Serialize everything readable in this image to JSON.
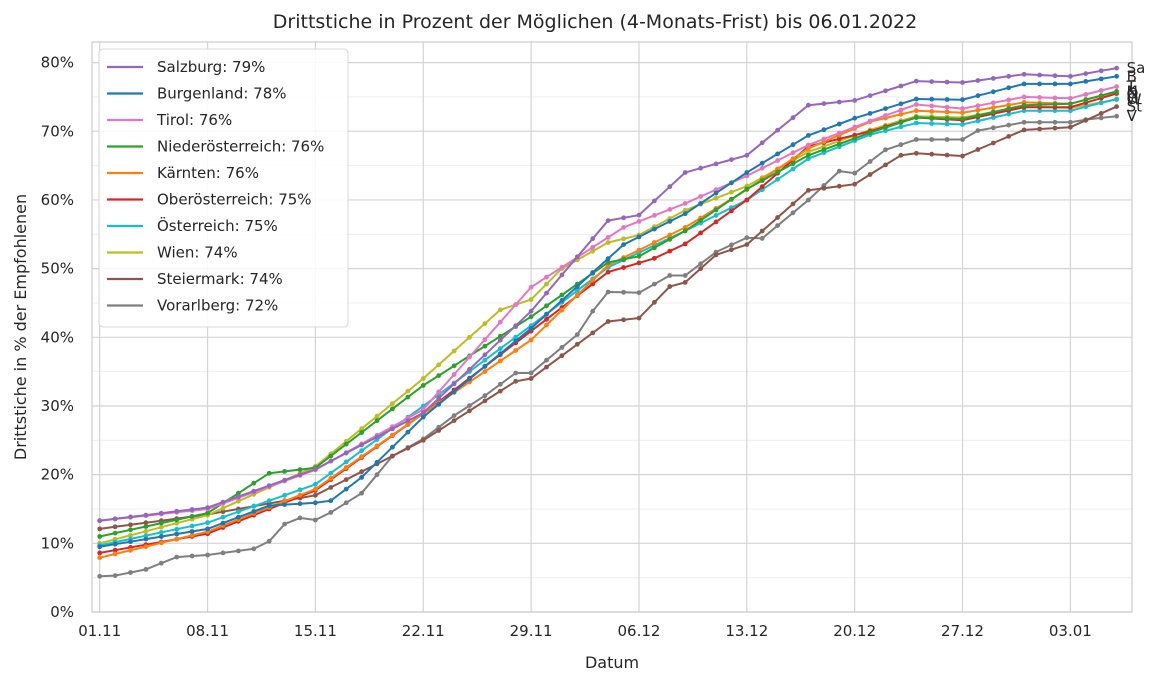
{
  "chart_data": {
    "type": "line",
    "title": "Drittstiche in Prozent der Möglichen (4-Monats-Frist) bis 06.01.2022",
    "xlabel": "Datum",
    "ylabel": "Drittstiche in % der Empfohlenen",
    "x_start": "2021-11-01",
    "x_ticks": [
      "01.11",
      "08.11",
      "15.11",
      "22.11",
      "29.11",
      "06.12",
      "13.12",
      "20.12",
      "27.12",
      "03.01"
    ],
    "y_ticks": [
      "0%",
      "10%",
      "20%",
      "30%",
      "40%",
      "50%",
      "60%",
      "70%",
      "80%"
    ],
    "ylim": [
      0,
      83
    ],
    "grid": true,
    "legend_position": "top-left",
    "series": [
      {
        "name": "Salzburg: 79%",
        "end_label": "Sa",
        "color": "#9467bd",
        "anchors": [
          [
            0,
            13.3
          ],
          [
            7,
            15.2
          ],
          [
            14,
            20.8
          ],
          [
            21,
            29.0
          ],
          [
            28,
            43.8
          ],
          [
            33,
            57.0
          ],
          [
            35,
            57.8
          ],
          [
            38,
            64.0
          ],
          [
            42,
            66.5
          ],
          [
            46,
            73.8
          ],
          [
            49,
            74.5
          ],
          [
            53,
            77.3
          ],
          [
            56,
            77.1
          ],
          [
            60,
            78.3
          ],
          [
            63,
            78.0
          ],
          [
            66,
            79.2
          ]
        ]
      },
      {
        "name": "Burgenland: 78%",
        "end_label": "B",
        "color": "#1f77b4",
        "anchors": [
          [
            0,
            9.5
          ],
          [
            7,
            12.1
          ],
          [
            11,
            15.5
          ],
          [
            14,
            15.9
          ],
          [
            15,
            16.2
          ],
          [
            17,
            19.6
          ],
          [
            21,
            28.4
          ],
          [
            28,
            41.3
          ],
          [
            34,
            53.5
          ],
          [
            38,
            58.0
          ],
          [
            42,
            64.0
          ],
          [
            46,
            69.4
          ],
          [
            49,
            71.9
          ],
          [
            53,
            74.7
          ],
          [
            56,
            74.6
          ],
          [
            60,
            76.9
          ],
          [
            63,
            76.9
          ],
          [
            66,
            78.0
          ]
        ]
      },
      {
        "name": "Tirol: 76%",
        "end_label": "T",
        "color": "#e377c2",
        "anchors": [
          [
            0,
            13.3
          ],
          [
            7,
            15.0
          ],
          [
            14,
            20.7
          ],
          [
            21,
            29.5
          ],
          [
            28,
            47.3
          ],
          [
            34,
            56.0
          ],
          [
            38,
            59.5
          ],
          [
            42,
            63.5
          ],
          [
            46,
            68.0
          ],
          [
            50,
            71.5
          ],
          [
            53,
            73.9
          ],
          [
            56,
            73.3
          ],
          [
            60,
            75.0
          ],
          [
            63,
            74.8
          ],
          [
            66,
            76.5
          ]
        ]
      },
      {
        "name": "Niederösterreich: 76%",
        "end_label": "N",
        "color": "#2ca02c",
        "anchors": [
          [
            0,
            11.0
          ],
          [
            7,
            14.4
          ],
          [
            11,
            20.2
          ],
          [
            14,
            21.0
          ],
          [
            21,
            33.0
          ],
          [
            28,
            43.0
          ],
          [
            33,
            50.9
          ],
          [
            35,
            51.8
          ],
          [
            38,
            55.5
          ],
          [
            42,
            61.6
          ],
          [
            46,
            66.5
          ],
          [
            50,
            69.8
          ],
          [
            53,
            72.0
          ],
          [
            56,
            71.8
          ],
          [
            60,
            73.8
          ],
          [
            63,
            74.0
          ],
          [
            66,
            75.8
          ]
        ]
      },
      {
        "name": "Kärnten: 76%",
        "end_label": "K",
        "color": "#ff7f0e",
        "anchors": [
          [
            0,
            7.9
          ],
          [
            7,
            11.7
          ],
          [
            14,
            17.9
          ],
          [
            21,
            28.9
          ],
          [
            28,
            39.6
          ],
          [
            33,
            50.5
          ],
          [
            38,
            56.0
          ],
          [
            42,
            61.5
          ],
          [
            46,
            67.5
          ],
          [
            50,
            71.4
          ],
          [
            53,
            73.0
          ],
          [
            56,
            72.7
          ],
          [
            60,
            74.2
          ],
          [
            63,
            74.0
          ],
          [
            66,
            75.8
          ]
        ]
      },
      {
        "name": "Oberösterreich: 75%",
        "end_label": "O",
        "color": "#d62728",
        "anchors": [
          [
            0,
            8.6
          ],
          [
            7,
            11.4
          ],
          [
            14,
            17.7
          ],
          [
            21,
            28.9
          ],
          [
            28,
            40.9
          ],
          [
            33,
            49.5
          ],
          [
            36,
            51.5
          ],
          [
            38,
            53.6
          ],
          [
            42,
            60.0
          ],
          [
            46,
            67.8
          ],
          [
            50,
            70.0
          ],
          [
            53,
            72.0
          ],
          [
            56,
            71.6
          ],
          [
            60,
            73.5
          ],
          [
            63,
            73.5
          ],
          [
            66,
            75.5
          ]
        ]
      },
      {
        "name": "Österreich: 75%",
        "end_label": "Ö",
        "color": "#17becf",
        "anchors": [
          [
            0,
            9.7
          ],
          [
            7,
            13.0
          ],
          [
            14,
            18.6
          ],
          [
            21,
            30.0
          ],
          [
            28,
            41.7
          ],
          [
            33,
            50.2
          ],
          [
            38,
            55.5
          ],
          [
            42,
            60.0
          ],
          [
            46,
            66.0
          ],
          [
            50,
            69.5
          ],
          [
            53,
            71.2
          ],
          [
            56,
            71.0
          ],
          [
            60,
            73.0
          ],
          [
            63,
            73.0
          ],
          [
            66,
            74.7
          ]
        ]
      },
      {
        "name": "Wien: 74%",
        "end_label": "W",
        "color": "#bcbd22",
        "anchors": [
          [
            0,
            10.0
          ],
          [
            7,
            14.1
          ],
          [
            14,
            21.2
          ],
          [
            21,
            34.0
          ],
          [
            26,
            44.0
          ],
          [
            28,
            45.5
          ],
          [
            30,
            50.0
          ],
          [
            33,
            53.8
          ],
          [
            35,
            54.9
          ],
          [
            38,
            58.5
          ],
          [
            42,
            62.0
          ],
          [
            46,
            67.0
          ],
          [
            50,
            70.2
          ],
          [
            53,
            72.2
          ],
          [
            56,
            72.0
          ],
          [
            60,
            73.6
          ],
          [
            63,
            73.4
          ],
          [
            66,
            74.6
          ]
        ]
      },
      {
        "name": "Steiermark: 74%",
        "end_label": "St",
        "color": "#8c564b",
        "anchors": [
          [
            0,
            12.1
          ],
          [
            7,
            14.2
          ],
          [
            14,
            17.0
          ],
          [
            21,
            25.0
          ],
          [
            27,
            33.6
          ],
          [
            28,
            34.0
          ],
          [
            33,
            42.3
          ],
          [
            35,
            42.8
          ],
          [
            37,
            47.4
          ],
          [
            38,
            48.0
          ],
          [
            40,
            52.0
          ],
          [
            42,
            53.5
          ],
          [
            46,
            61.4
          ],
          [
            49,
            62.3
          ],
          [
            52,
            66.5
          ],
          [
            53,
            66.8
          ],
          [
            56,
            66.4
          ],
          [
            60,
            70.2
          ],
          [
            63,
            70.6
          ],
          [
            66,
            73.6
          ]
        ]
      },
      {
        "name": "Vorarlberg: 72%",
        "end_label": "V",
        "color": "#7f7f7f",
        "anchors": [
          [
            0,
            5.2
          ],
          [
            1,
            5.3
          ],
          [
            3,
            6.2
          ],
          [
            5,
            8.0
          ],
          [
            7,
            8.3
          ],
          [
            10,
            9.2
          ],
          [
            11,
            10.3
          ],
          [
            12,
            12.8
          ],
          [
            13,
            13.7
          ],
          [
            14,
            13.4
          ],
          [
            15,
            14.5
          ],
          [
            17,
            17.3
          ],
          [
            19,
            22.7
          ],
          [
            21,
            25.2
          ],
          [
            23,
            28.6
          ],
          [
            25,
            31.5
          ],
          [
            27,
            34.8
          ],
          [
            28,
            34.8
          ],
          [
            31,
            40.4
          ],
          [
            32,
            43.8
          ],
          [
            33,
            46.6
          ],
          [
            35,
            46.5
          ],
          [
            37,
            49.0
          ],
          [
            38,
            49.0
          ],
          [
            40,
            52.4
          ],
          [
            42,
            54.5
          ],
          [
            43,
            54.4
          ],
          [
            46,
            60.0
          ],
          [
            48,
            64.2
          ],
          [
            49,
            63.9
          ],
          [
            51,
            67.3
          ],
          [
            53,
            68.8
          ],
          [
            56,
            68.8
          ],
          [
            57,
            70.1
          ],
          [
            60,
            71.3
          ],
          [
            63,
            71.3
          ],
          [
            64,
            71.7
          ],
          [
            66,
            72.2
          ]
        ]
      }
    ]
  }
}
